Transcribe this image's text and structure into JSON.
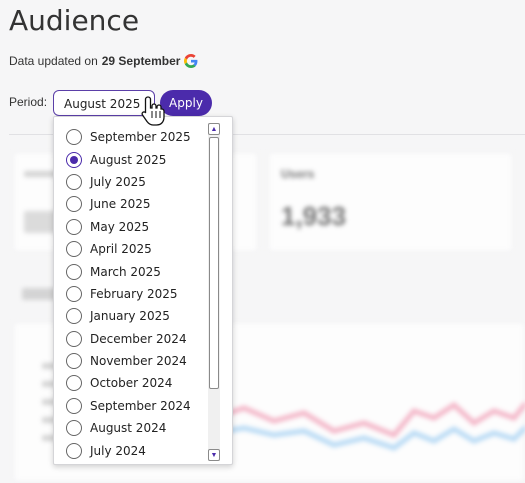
{
  "header": {
    "title": "Audience",
    "updated_prefix": "Data updated on",
    "updated_date": "29 September"
  },
  "period": {
    "label": "Period:",
    "selected": "August 2025",
    "apply_label": "Apply",
    "options": [
      {
        "label": "September 2025",
        "checked": false
      },
      {
        "label": "August 2025",
        "checked": true
      },
      {
        "label": "July 2025",
        "checked": false
      },
      {
        "label": "June 2025",
        "checked": false
      },
      {
        "label": "May 2025",
        "checked": false
      },
      {
        "label": "April 2025",
        "checked": false
      },
      {
        "label": "March 2025",
        "checked": false
      },
      {
        "label": "February 2025",
        "checked": false
      },
      {
        "label": "January 2025",
        "checked": false
      },
      {
        "label": "December 2024",
        "checked": false
      },
      {
        "label": "November 2024",
        "checked": false
      },
      {
        "label": "October 2024",
        "checked": false
      },
      {
        "label": "September 2024",
        "checked": false
      },
      {
        "label": "August 2024",
        "checked": false
      },
      {
        "label": "July 2024",
        "checked": false
      }
    ]
  },
  "background": {
    "users_card_title": "Users",
    "users_card_value": "1,933"
  },
  "colors": {
    "accent": "#4b2bab",
    "chart_pink": "#f4a7bd",
    "chart_blue": "#a9d4f5"
  }
}
